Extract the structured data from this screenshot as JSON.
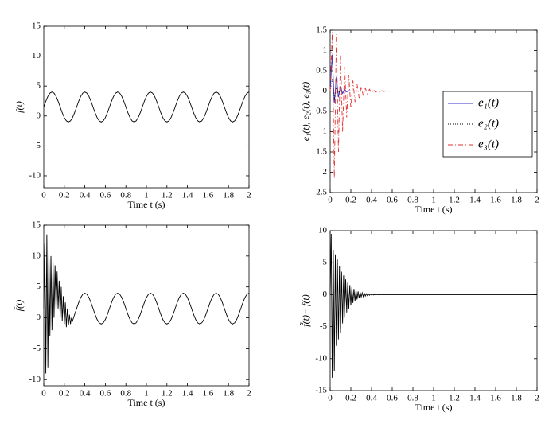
{
  "chart_data": [
    {
      "type": "line",
      "xlabel": "Time t (s)",
      "ylabel": "f(t)",
      "xlim": [
        0,
        2
      ],
      "xticks": [
        0,
        0.2,
        0.4,
        0.6,
        0.8,
        1,
        1.2,
        1.4,
        1.6,
        1.8,
        2
      ],
      "ylim": [
        -12,
        15
      ],
      "yticks": [
        -10,
        -5,
        0,
        5,
        10,
        15
      ],
      "x": [
        0,
        0.02,
        0.04,
        0.06,
        0.08,
        0.1,
        0.12,
        0.14,
        0.16,
        0.18,
        0.2,
        0.22,
        0.24,
        0.26,
        0.28,
        0.3,
        0.32,
        0.34,
        0.36,
        0.38,
        0.4,
        0.42,
        0.44,
        0.46,
        0.48,
        0.5,
        0.52,
        0.54,
        0.56,
        0.58,
        0.6,
        0.62,
        0.64,
        0.66,
        0.68,
        0.7,
        0.72,
        0.74,
        0.76,
        0.78,
        0.8,
        0.82,
        0.84,
        0.86,
        0.88,
        0.9,
        0.92,
        0.94,
        0.96,
        0.98,
        1,
        1.02,
        1.04,
        1.06,
        1.08,
        1.1,
        1.12,
        1.14,
        1.16,
        1.18,
        1.2,
        1.22,
        1.24,
        1.26,
        1.28,
        1.3,
        1.32,
        1.34,
        1.36,
        1.38,
        1.4,
        1.42,
        1.44,
        1.46,
        1.48,
        1.5,
        1.52,
        1.54,
        1.56,
        1.58,
        1.6,
        1.62,
        1.64,
        1.66,
        1.68,
        1.7,
        1.72,
        1.74,
        1.76,
        1.78,
        1.8,
        1.82,
        1.84,
        1.86,
        1.88,
        1.9,
        1.92,
        1.94,
        1.96,
        1.98,
        2
      ],
      "series": [
        {
          "color": "#000000",
          "style": "solid",
          "values": [
            1.5,
            2.46,
            3.27,
            3.81,
            4,
            3.81,
            3.27,
            2.46,
            1.5,
            0.54,
            -0.27,
            -0.81,
            -1,
            -0.81,
            -0.27,
            0.54,
            1.5,
            2.46,
            3.27,
            3.81,
            4,
            3.81,
            3.27,
            2.46,
            1.5,
            0.54,
            -0.27,
            -0.81,
            -1,
            -0.81,
            -0.27,
            0.54,
            1.5,
            2.46,
            3.27,
            3.81,
            4,
            3.81,
            3.27,
            2.46,
            1.5,
            0.54,
            -0.27,
            -0.81,
            -1,
            -0.81,
            -0.27,
            0.54,
            1.5,
            2.46,
            3.27,
            3.81,
            4,
            3.81,
            3.27,
            2.46,
            1.5,
            0.54,
            -0.27,
            -0.81,
            -1,
            -0.81,
            -0.27,
            0.54,
            1.5,
            2.46,
            3.27,
            3.81,
            4,
            3.81,
            3.27,
            2.46,
            1.5,
            0.54,
            -0.27,
            -0.81,
            -1,
            -0.81,
            -0.27,
            0.54,
            1.5,
            2.46,
            3.27,
            3.81,
            4,
            3.81,
            3.27,
            2.46,
            1.5,
            0.54,
            -0.27,
            -0.81,
            -1,
            -0.81,
            -0.27,
            0.54,
            1.5,
            2.46,
            3.27,
            3.81,
            4
          ]
        }
      ]
    },
    {
      "type": "line",
      "xlabel": "Time t (s)",
      "ylabel": "e₁(t), e₂(t), e₃(t)",
      "xlim": [
        0,
        2
      ],
      "xticks": [
        0,
        0.2,
        0.4,
        0.6,
        0.8,
        1,
        1.2,
        1.4,
        1.6,
        1.8,
        2
      ],
      "ylim": [
        -2.5,
        1.5
      ],
      "yticks": [
        {
          "value": -2.5,
          "label": "2.5"
        },
        {
          "value": -2,
          "label": "2"
        },
        {
          "value": -1.5,
          "label": "1.5"
        },
        {
          "value": -1,
          "label": "1"
        },
        {
          "value": -0.5,
          "label": "0.5"
        },
        0,
        0.5,
        1,
        1.5
      ],
      "legend": "right",
      "x": [
        0,
        0.02,
        0.04,
        0.06,
        0.08,
        0.1,
        0.12,
        0.14,
        0.16,
        0.18,
        0.2,
        0.22,
        0.24,
        0.26,
        0.28,
        0.3,
        0.32,
        0.34,
        0.36,
        0.38,
        0.4,
        0.42,
        0.44,
        0.46,
        0.48,
        0.5,
        0.52,
        0.54,
        0.56,
        0.58,
        0.6,
        2
      ],
      "series": [
        {
          "name": "e₁(t)",
          "color": "#3333cc",
          "style": "solid",
          "values": [
            0,
            0.9,
            -0.3,
            0.35,
            -0.15,
            0.12,
            -0.06,
            0.04,
            -0.02,
            0.01,
            0,
            0,
            0,
            0,
            0,
            0,
            0,
            0,
            0,
            0,
            0,
            0,
            0,
            0,
            0,
            0,
            0,
            0,
            0,
            0,
            0,
            0
          ]
        },
        {
          "name": "e₂(t)",
          "color": "#000000",
          "style": "dotted",
          "values": [
            0,
            0.3,
            -0.2,
            0.1,
            -0.05,
            0.02,
            0,
            0,
            0,
            0,
            0,
            0,
            0,
            0,
            0,
            0,
            0,
            0,
            0,
            0,
            0,
            0,
            0,
            0,
            0,
            0,
            0,
            0,
            0,
            0,
            0,
            0
          ]
        },
        {
          "name": "e₃(t)",
          "color": "#e03030",
          "style": "dashdot",
          "values": [
            0,
            1.45,
            -2.15,
            1.4,
            -1.5,
            0.9,
            -1.0,
            0.6,
            -0.65,
            0.4,
            -0.42,
            0.26,
            -0.27,
            0.17,
            -0.17,
            0.11,
            -0.11,
            0.07,
            -0.07,
            0.045,
            -0.045,
            0.03,
            -0.03,
            0.02,
            -0.02,
            0.01,
            -0.01,
            0.005,
            -0.005,
            0,
            0,
            0
          ]
        }
      ]
    },
    {
      "type": "line",
      "xlabel": "Time t (s)",
      "ylabel": "f̃(t)",
      "xlim": [
        0,
        2
      ],
      "xticks": [
        0,
        0.2,
        0.4,
        0.6,
        0.8,
        1,
        1.2,
        1.4,
        1.6,
        1.8,
        2
      ],
      "ylim": [
        -11,
        15
      ],
      "yticks": [
        -10,
        -5,
        0,
        5,
        10,
        15
      ],
      "x": [
        0,
        0.01,
        0.02,
        0.03,
        0.04,
        0.05,
        0.06,
        0.07,
        0.08,
        0.09,
        0.1,
        0.11,
        0.12,
        0.13,
        0.14,
        0.15,
        0.16,
        0.17,
        0.18,
        0.19,
        0.2,
        0.21,
        0.22,
        0.23,
        0.24,
        0.25,
        0.26,
        0.27,
        0.28,
        0.29,
        0.3,
        0.32,
        0.34,
        0.36,
        0.38,
        0.4,
        0.42,
        0.44,
        0.46,
        0.48,
        0.5,
        0.52,
        0.54,
        0.56,
        0.58,
        0.6,
        0.62,
        0.64,
        0.66,
        0.68,
        0.7,
        0.72,
        0.74,
        0.76,
        0.78,
        0.8,
        0.82,
        0.84,
        0.86,
        0.88,
        0.9,
        0.92,
        0.94,
        0.96,
        0.98,
        1,
        1.02,
        1.04,
        1.06,
        1.08,
        1.1,
        1.12,
        1.14,
        1.16,
        1.18,
        1.2,
        1.22,
        1.24,
        1.26,
        1.28,
        1.3,
        1.32,
        1.34,
        1.36,
        1.38,
        1.4,
        1.42,
        1.44,
        1.46,
        1.48,
        1.5,
        1.52,
        1.54,
        1.56,
        1.58,
        1.6,
        1.62,
        1.64,
        1.66,
        1.68,
        1.7,
        1.72,
        1.74,
        1.76,
        1.78,
        1.8,
        1.82,
        1.84,
        1.86,
        1.88,
        1.9,
        1.92,
        1.94,
        1.96,
        1.98,
        2
      ],
      "series": [
        {
          "color": "#000000",
          "style": "solid",
          "values": [
            1.5,
            12,
            -9,
            13.5,
            -8,
            11,
            -3,
            10,
            -2,
            9,
            0,
            8.5,
            1,
            7.5,
            1.5,
            6,
            0,
            5,
            -0.5,
            3.5,
            -1,
            2.5,
            -1.5,
            1.5,
            -1.2,
            0.5,
            -1,
            0,
            -0.5,
            0,
            0.5,
            1.5,
            2.46,
            3.27,
            3.81,
            4,
            3.81,
            3.27,
            2.46,
            1.5,
            0.54,
            -0.27,
            -0.81,
            -1,
            -0.81,
            -0.27,
            0.54,
            1.5,
            2.46,
            3.27,
            3.81,
            4,
            3.81,
            3.27,
            2.46,
            1.5,
            0.54,
            -0.27,
            -0.81,
            -1,
            -0.81,
            -0.27,
            0.54,
            1.5,
            2.46,
            3.27,
            3.81,
            4,
            3.81,
            3.27,
            2.46,
            1.5,
            0.54,
            -0.27,
            -0.81,
            -1,
            -0.81,
            -0.27,
            0.54,
            1.5,
            2.46,
            3.27,
            3.81,
            4,
            3.81,
            3.27,
            2.46,
            1.5,
            0.54,
            -0.27,
            -0.81,
            -1,
            -0.81,
            -0.27,
            0.54,
            1.5,
            2.46,
            3.27,
            3.81,
            4,
            3.81,
            3.27,
            2.46,
            1.5,
            0.54,
            -0.27,
            -0.81,
            -1,
            -0.81,
            -0.27,
            0.54,
            1.5,
            2.46,
            3.27,
            3.81,
            4
          ]
        }
      ]
    },
    {
      "type": "line",
      "xlabel": "Time t (s)",
      "ylabel": "f̃(t)− f(t)",
      "xlim": [
        0,
        2
      ],
      "xticks": [
        0,
        0.2,
        0.4,
        0.6,
        0.8,
        1,
        1.2,
        1.4,
        1.6,
        1.8,
        2
      ],
      "ylim": [
        -15,
        10
      ],
      "yticks": [
        -15,
        -10,
        -5,
        0,
        5,
        10
      ],
      "x": [
        0,
        0.01,
        0.02,
        0.03,
        0.04,
        0.05,
        0.06,
        0.07,
        0.08,
        0.09,
        0.1,
        0.11,
        0.12,
        0.13,
        0.14,
        0.15,
        0.16,
        0.17,
        0.18,
        0.19,
        0.2,
        0.21,
        0.22,
        0.23,
        0.24,
        0.25,
        0.26,
        0.27,
        0.28,
        0.29,
        0.3,
        0.31,
        0.32,
        0.33,
        0.34,
        0.35,
        0.36,
        0.37,
        0.38,
        0.39,
        0.4,
        0.41,
        0.42,
        0.43,
        0.44,
        0.45,
        0.46,
        0.47,
        0.48,
        0.49,
        0.5,
        2
      ],
      "series": [
        {
          "color": "#000000",
          "style": "solid",
          "values": [
            0,
            9.5,
            -13,
            7,
            -12,
            6.3,
            -8,
            5.5,
            -7,
            4.5,
            -6,
            3.6,
            -4.5,
            3,
            -3.6,
            2.4,
            -2.8,
            1.9,
            -2.2,
            1.5,
            -1.7,
            1.2,
            -1.3,
            0.9,
            -1.0,
            0.7,
            -0.75,
            0.5,
            -0.55,
            0.38,
            -0.4,
            0.28,
            -0.3,
            0.2,
            -0.21,
            0.14,
            -0.15,
            0.1,
            -0.1,
            0.07,
            -0.07,
            0.05,
            -0.05,
            0.03,
            -0.03,
            0.02,
            -0.02,
            0.01,
            -0.01,
            0,
            0,
            0
          ]
        }
      ]
    }
  ]
}
